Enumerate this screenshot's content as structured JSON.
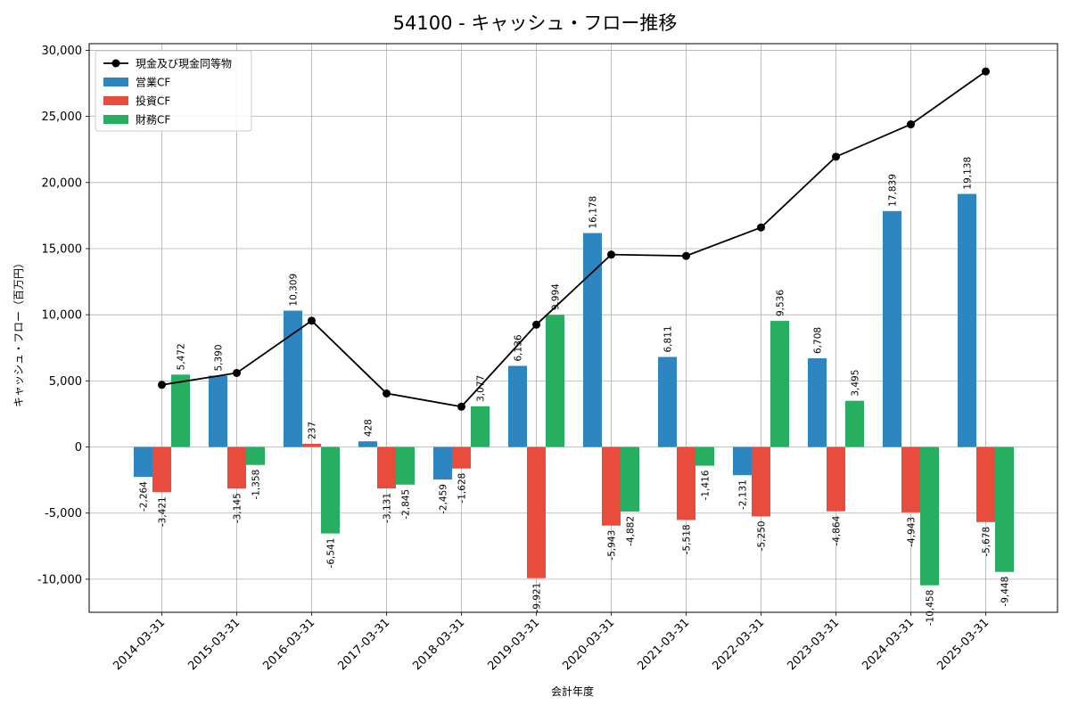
{
  "chart_data": {
    "type": "bar",
    "title": "54100 - キャッシュ・フロー推移",
    "xlabel": "会計年度",
    "ylabel": "キャッシュ・フロー（百万円）",
    "ylim": [
      -12500,
      30500
    ],
    "yticks": [
      -10000,
      -5000,
      0,
      5000,
      10000,
      15000,
      20000,
      25000,
      30000
    ],
    "ytick_labels": [
      "-10,000",
      "-5,000",
      "0",
      "5,000",
      "10,000",
      "15,000",
      "20,000",
      "25,000",
      "30,000"
    ],
    "grid": true,
    "legend_position": "top-left",
    "categories": [
      "2014-03-31",
      "2015-03-31",
      "2016-03-31",
      "2017-03-31",
      "2018-03-31",
      "2019-03-31",
      "2020-03-31",
      "2021-03-31",
      "2022-03-31",
      "2023-03-31",
      "2024-03-31",
      "2025-03-31"
    ],
    "series": [
      {
        "name": "営業CF",
        "kind": "bar",
        "color": "#2e86c1",
        "values": [
          -2264,
          5390,
          10309,
          428,
          -2459,
          6136,
          16178,
          6811,
          -2131,
          6708,
          17839,
          19138
        ],
        "labels": [
          "-2,264",
          "5,390",
          "10,309",
          "428",
          "-2,459",
          "6,136",
          "16,178",
          "6,811",
          "-2,131",
          "6,708",
          "17,839",
          "19,138"
        ]
      },
      {
        "name": "投資CF",
        "kind": "bar",
        "color": "#e74c3c",
        "values": [
          -3421,
          -3145,
          237,
          -3131,
          -1628,
          -9921,
          -5943,
          -5518,
          -5250,
          -4864,
          -4943,
          -5678
        ],
        "labels": [
          "-3,421",
          "-3,145",
          "237",
          "-3,131",
          "-1,628",
          "-9,921",
          "-5,943",
          "-5,518",
          "-5,250",
          "-4,864",
          "-4,943",
          "-5,678"
        ]
      },
      {
        "name": "財務CF",
        "kind": "bar",
        "color": "#27ae60",
        "values": [
          5472,
          -1358,
          -6541,
          -2845,
          3077,
          9994,
          -4882,
          -1416,
          9536,
          3495,
          -10458,
          -9448
        ],
        "labels": [
          "5,472",
          "-1,358",
          "-6,541",
          "-2,845",
          "3,077",
          "9,994",
          "-4,882",
          "-1,416",
          "9,536",
          "3,495",
          "-10,458",
          "-9,448"
        ]
      },
      {
        "name": "現金及び現金同等物",
        "kind": "line",
        "color": "#000000",
        "values": [
          4700,
          5600,
          9550,
          4050,
          3050,
          9250,
          14550,
          14450,
          16600,
          21950,
          24400,
          28400
        ]
      }
    ]
  }
}
